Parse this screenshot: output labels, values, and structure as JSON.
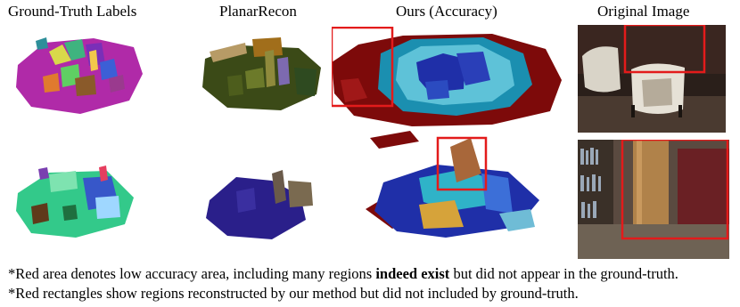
{
  "headers": {
    "col1": "Ground-Truth Labels",
    "col2": "PlanarRecon",
    "col3": "Ours (Accuracy)",
    "col4": "Original Image"
  },
  "captions": {
    "line1_before": "*Red area denotes low accuracy area, including many regions ",
    "line1_bold": "indeed exist",
    "line1_after": " but did not appear in the ground-truth.",
    "line2": "*Red rectangles show regions reconstructed by our method but did not included by ground-truth."
  },
  "colors": {
    "highlight_box": "#e31b1b",
    "low_accuracy": "#7d0a0a",
    "high_accuracy": "#1f2fa8"
  }
}
